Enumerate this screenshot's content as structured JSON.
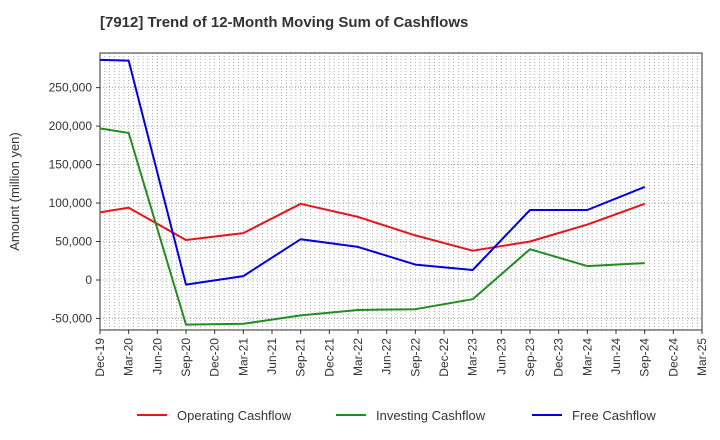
{
  "chart_data": {
    "type": "line",
    "title": "[7912]  Trend of 12-Month Moving Sum of Cashflows",
    "xlabel": "",
    "ylabel": "Amount (million yen)",
    "ylim": [
      -65000,
      295000
    ],
    "yticks": [
      -50000,
      0,
      50000,
      100000,
      150000,
      200000,
      250000
    ],
    "ytick_labels": [
      "-50,000",
      "0",
      "50,000",
      "100,000",
      "150,000",
      "200,000",
      "250,000"
    ],
    "x_range": [
      "Dec-19",
      "Mar-25"
    ],
    "xtick_labels": [
      "Dec-19",
      "Mar-20",
      "Jun-20",
      "Sep-20",
      "Dec-20",
      "Mar-21",
      "Jun-21",
      "Sep-21",
      "Dec-21",
      "Mar-22",
      "Jun-22",
      "Sep-22",
      "Dec-22",
      "Mar-23",
      "Jun-23",
      "Sep-23",
      "Dec-23",
      "Mar-24",
      "Jun-24",
      "Sep-24",
      "Dec-24",
      "Mar-25"
    ],
    "grid": true,
    "legend_position": "bottom",
    "series": [
      {
        "name": "Operating Cashflow",
        "color": "#e8141c",
        "x": [
          "Dec-19",
          "Mar-20",
          "Sep-20",
          "Mar-21",
          "Sep-21",
          "Mar-22",
          "Sep-22",
          "Mar-23",
          "Sep-23",
          "Mar-24",
          "Sep-24"
        ],
        "values": [
          88000,
          94000,
          52000,
          61000,
          99000,
          82000,
          58000,
          38000,
          50000,
          72000,
          99000
        ]
      },
      {
        "name": "Investing Cashflow",
        "color": "#228b22",
        "x": [
          "Dec-19",
          "Mar-20",
          "Sep-20",
          "Mar-21",
          "Sep-21",
          "Mar-22",
          "Sep-22",
          "Mar-23",
          "Sep-23",
          "Mar-24",
          "Sep-24"
        ],
        "values": [
          197000,
          191000,
          -58000,
          -57000,
          -46000,
          -39000,
          -38000,
          -25000,
          40000,
          18000,
          22000
        ]
      },
      {
        "name": "Free Cashflow",
        "color": "#0000e0",
        "x": [
          "Dec-19",
          "Mar-20",
          "Sep-20",
          "Mar-21",
          "Sep-21",
          "Mar-22",
          "Sep-22",
          "Mar-23",
          "Sep-23",
          "Mar-24",
          "Sep-24"
        ],
        "values": [
          286000,
          285000,
          -6000,
          5000,
          53000,
          43000,
          20000,
          13000,
          91000,
          91000,
          121000
        ]
      }
    ]
  }
}
